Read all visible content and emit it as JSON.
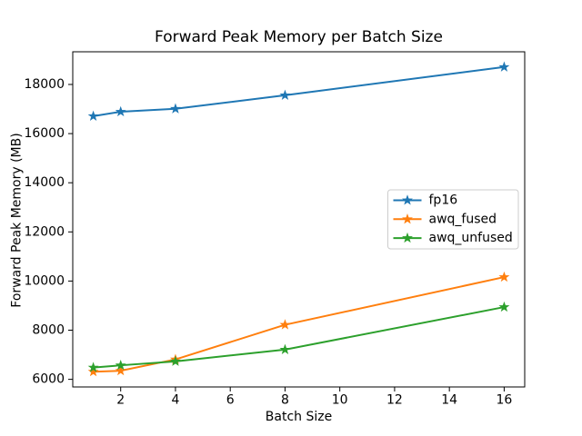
{
  "chart_data": {
    "type": "line",
    "title": "Forward Peak Memory per Batch Size",
    "xlabel": "Batch Size",
    "ylabel": "Forward Peak Memory (MB)",
    "x": [
      1,
      2,
      4,
      8,
      16
    ],
    "series": [
      {
        "name": "fp16",
        "color": "#1f77b4",
        "values": [
          16710,
          16890,
          17010,
          17560,
          18710
        ]
      },
      {
        "name": "awq_fused",
        "color": "#ff7f0e",
        "values": [
          6310,
          6350,
          6810,
          8220,
          10160
        ]
      },
      {
        "name": "awq_unfused",
        "color": "#2ca02c",
        "values": [
          6480,
          6570,
          6730,
          7210,
          8940
        ]
      }
    ],
    "x_ticks": [
      2,
      4,
      6,
      8,
      10,
      12,
      14,
      16
    ],
    "y_ticks": [
      6000,
      8000,
      10000,
      12000,
      14000,
      16000,
      18000
    ],
    "xlim": [
      0.25,
      16.75
    ],
    "ylim": [
      5690,
      19330
    ],
    "marker": "star",
    "grid": false,
    "legend": {
      "position": "center-right",
      "entries": [
        "fp16",
        "awq_fused",
        "awq_unfused"
      ]
    },
    "colors": {
      "text": "#000000",
      "spine": "#000000",
      "legend_border": "#cccccc",
      "background": "#ffffff"
    }
  }
}
